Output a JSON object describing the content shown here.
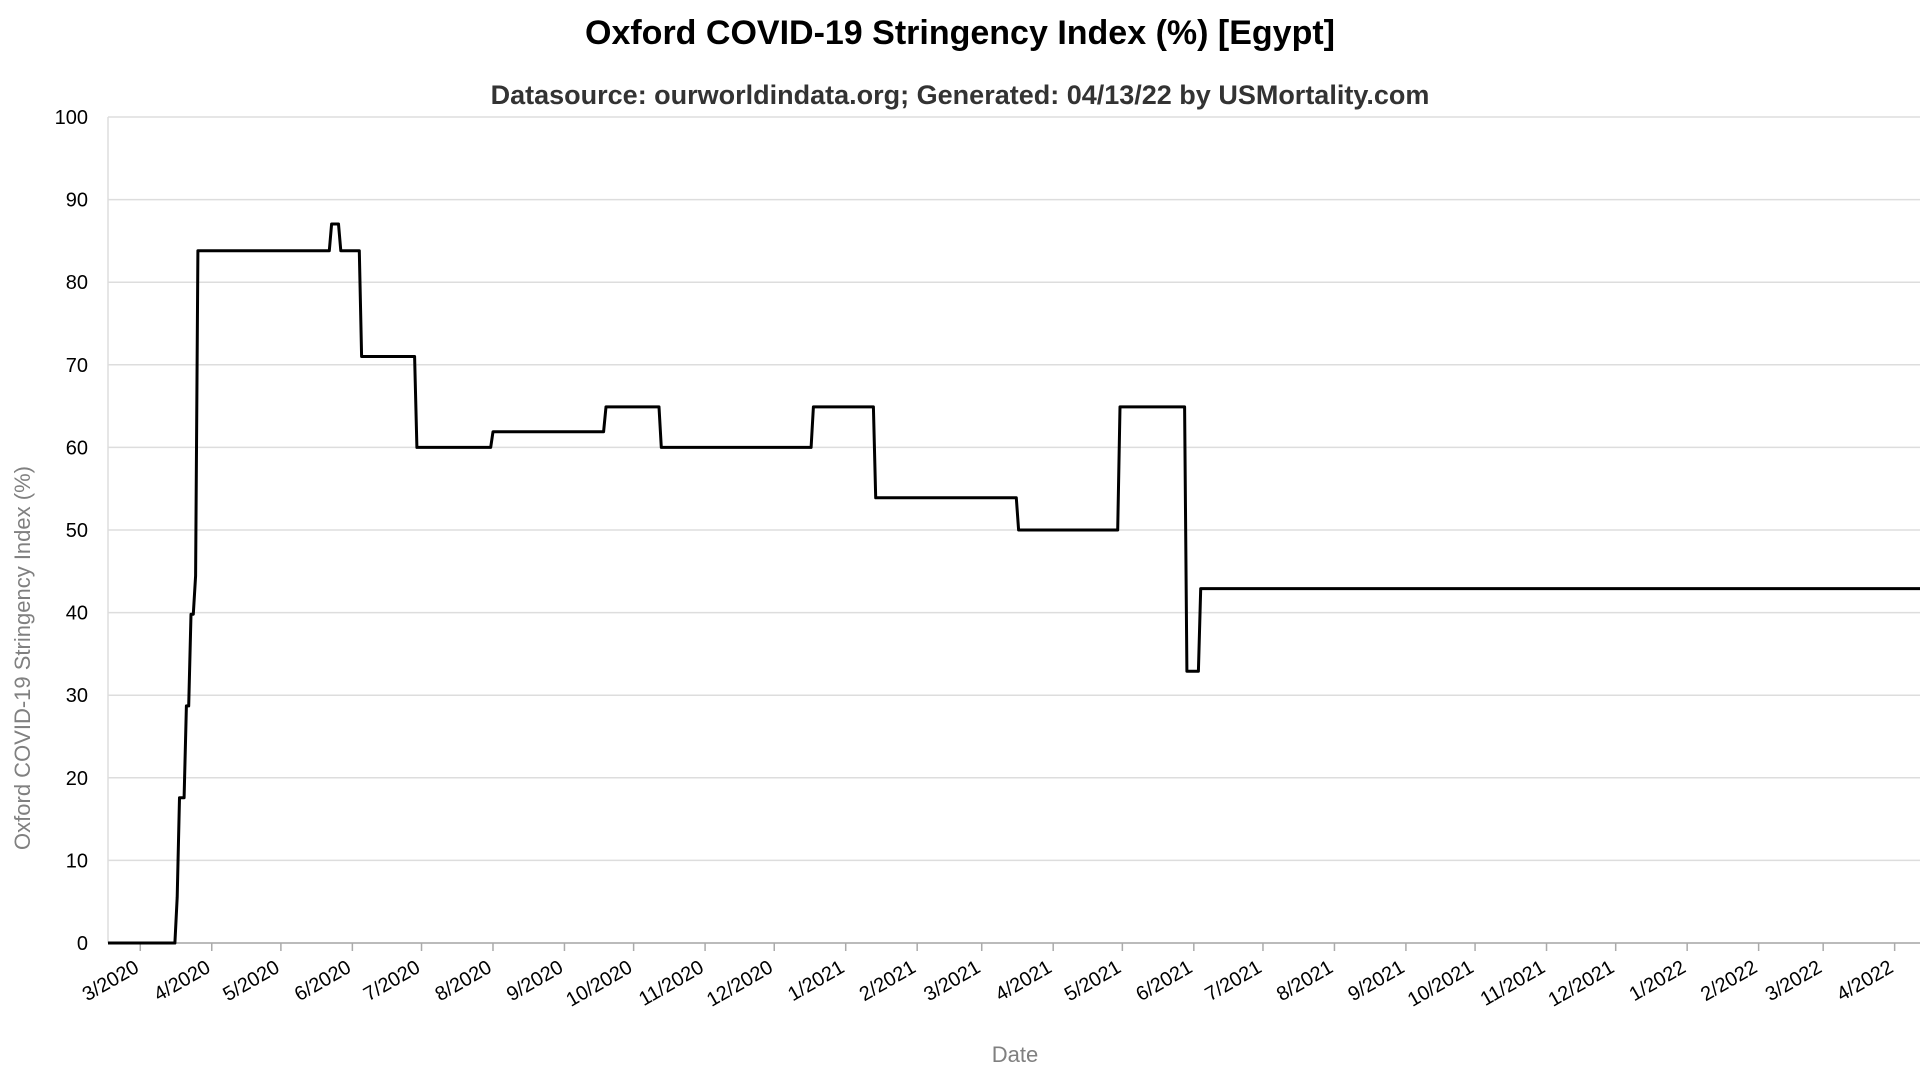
{
  "chart_data": {
    "type": "line",
    "title": "Oxford COVID-19 Stringency Index (%) [Egypt]",
    "subtitle": "Datasource: ourworldindata.org; Generated: 04/13/22 by USMortality.com",
    "xlabel": "Date",
    "ylabel": "Oxford COVID-19 Stringency Index (%)",
    "ylim": [
      0,
      100
    ],
    "yticks": [
      0,
      10,
      20,
      30,
      40,
      50,
      60,
      70,
      80,
      90,
      100
    ],
    "xlim": [
      "2020-02-16",
      "2022-04-12"
    ],
    "xticks": [
      {
        "date": "2020-03-01",
        "label": "3/2020"
      },
      {
        "date": "2020-04-01",
        "label": "4/2020"
      },
      {
        "date": "2020-05-01",
        "label": "5/2020"
      },
      {
        "date": "2020-06-01",
        "label": "6/2020"
      },
      {
        "date": "2020-07-01",
        "label": "7/2020"
      },
      {
        "date": "2020-08-01",
        "label": "8/2020"
      },
      {
        "date": "2020-09-01",
        "label": "9/2020"
      },
      {
        "date": "2020-10-01",
        "label": "10/2020"
      },
      {
        "date": "2020-11-01",
        "label": "11/2020"
      },
      {
        "date": "2020-12-01",
        "label": "12/2020"
      },
      {
        "date": "2021-01-01",
        "label": "1/2021"
      },
      {
        "date": "2021-02-01",
        "label": "2/2021"
      },
      {
        "date": "2021-03-01",
        "label": "3/2021"
      },
      {
        "date": "2021-04-01",
        "label": "4/2021"
      },
      {
        "date": "2021-05-01",
        "label": "5/2021"
      },
      {
        "date": "2021-06-01",
        "label": "6/2021"
      },
      {
        "date": "2021-07-01",
        "label": "7/2021"
      },
      {
        "date": "2021-08-01",
        "label": "8/2021"
      },
      {
        "date": "2021-09-01",
        "label": "9/2021"
      },
      {
        "date": "2021-10-01",
        "label": "10/2021"
      },
      {
        "date": "2021-11-01",
        "label": "11/2021"
      },
      {
        "date": "2021-12-01",
        "label": "12/2021"
      },
      {
        "date": "2022-01-01",
        "label": "1/2022"
      },
      {
        "date": "2022-02-01",
        "label": "2/2022"
      },
      {
        "date": "2022-03-01",
        "label": "3/2022"
      },
      {
        "date": "2022-04-01",
        "label": "4/2022"
      }
    ],
    "grid": true,
    "legend": "none",
    "series": [
      {
        "color": "#000000",
        "points": [
          [
            "2020-02-16",
            0
          ],
          [
            "2020-03-16",
            0
          ],
          [
            "2020-03-17",
            5.56
          ],
          [
            "2020-03-18",
            17.59
          ],
          [
            "2020-03-19",
            17.59
          ],
          [
            "2020-03-20",
            17.59
          ],
          [
            "2020-03-21",
            28.7
          ],
          [
            "2020-03-22",
            28.7
          ],
          [
            "2020-03-23",
            39.81
          ],
          [
            "2020-03-24",
            39.81
          ],
          [
            "2020-03-25",
            44.44
          ],
          [
            "2020-03-26",
            83.8
          ],
          [
            "2020-05-22",
            83.8
          ],
          [
            "2020-05-23",
            87.04
          ],
          [
            "2020-05-26",
            87.04
          ],
          [
            "2020-05-27",
            83.8
          ],
          [
            "2020-06-04",
            83.8
          ],
          [
            "2020-06-05",
            71.0
          ],
          [
            "2020-06-28",
            71.0
          ],
          [
            "2020-06-29",
            60.0
          ],
          [
            "2020-07-31",
            60.0
          ],
          [
            "2020-08-01",
            61.9
          ],
          [
            "2020-09-18",
            61.9
          ],
          [
            "2020-09-19",
            64.9
          ],
          [
            "2020-10-12",
            64.9
          ],
          [
            "2020-10-13",
            60.0
          ],
          [
            "2020-12-17",
            60.0
          ],
          [
            "2020-12-18",
            64.9
          ],
          [
            "2021-01-13",
            64.9
          ],
          [
            "2021-01-14",
            53.9
          ],
          [
            "2021-03-16",
            53.9
          ],
          [
            "2021-03-17",
            50.0
          ],
          [
            "2021-04-29",
            50.0
          ],
          [
            "2021-04-30",
            64.9
          ],
          [
            "2021-05-28",
            64.9
          ],
          [
            "2021-05-29",
            32.9
          ],
          [
            "2021-06-03",
            32.9
          ],
          [
            "2021-06-04",
            42.9
          ],
          [
            "2022-04-12",
            42.9
          ]
        ]
      }
    ]
  }
}
